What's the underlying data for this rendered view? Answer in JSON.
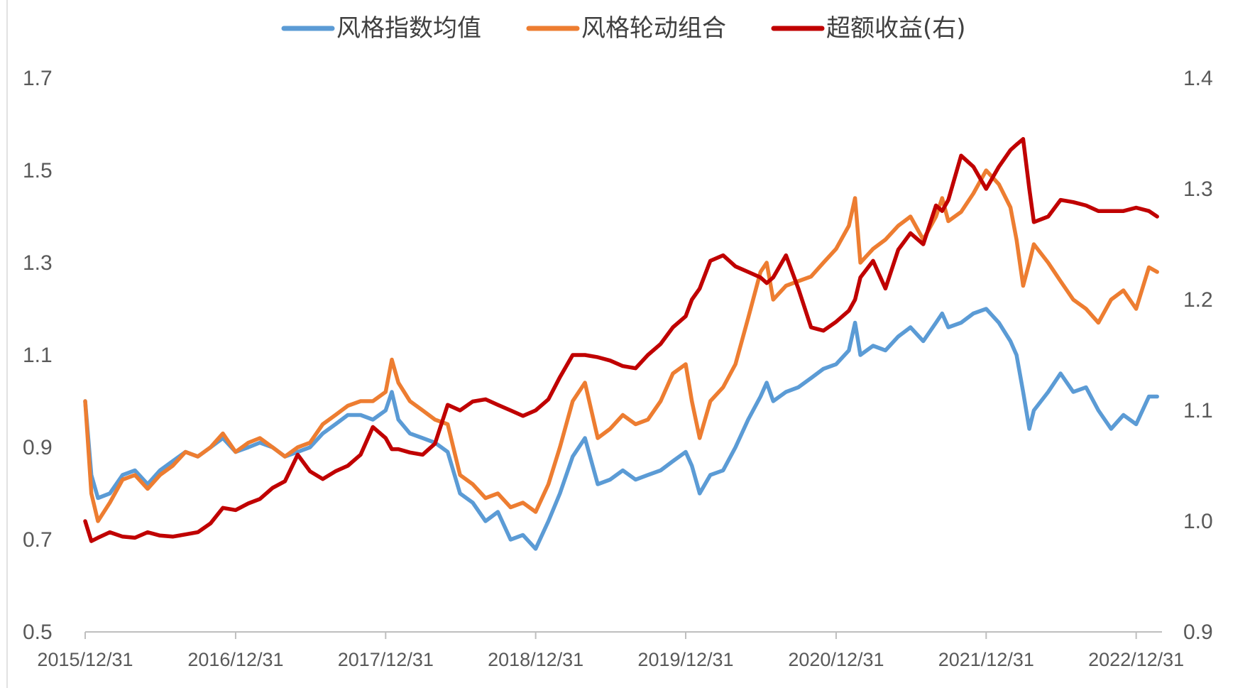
{
  "chart_data": {
    "type": "line",
    "title": "",
    "xlabel": "",
    "ylabel": "",
    "ylabel_right": "",
    "ylim": [
      0.5,
      1.7
    ],
    "ylim_right": [
      0.9,
      1.4
    ],
    "yticks": [
      "0.5",
      "0.7",
      "0.9",
      "1.1",
      "1.3",
      "1.5",
      "1.7"
    ],
    "yticks_right": [
      "0.9",
      "1.0",
      "1.1",
      "1.2",
      "1.3",
      "1.4"
    ],
    "x_tick_labels": [
      "2015/12/31",
      "2016/12/31",
      "2017/12/31",
      "2018/12/31",
      "2019/12/31",
      "2020/12/31",
      "2021/12/31",
      "2022/12/31"
    ],
    "legend_position": "top",
    "grid": false,
    "series": [
      {
        "name": "风格指数均值",
        "axis": "left",
        "color": "#5b9bd5",
        "x": [
          "2015/12/31",
          "2016/01/15",
          "2016/01/31",
          "2016/02/29",
          "2016/03/31",
          "2016/04/30",
          "2016/05/31",
          "2016/06/30",
          "2016/07/31",
          "2016/08/31",
          "2016/09/30",
          "2016/10/31",
          "2016/11/30",
          "2016/12/31",
          "2017/01/31",
          "2017/02/28",
          "2017/03/31",
          "2017/04/30",
          "2017/05/31",
          "2017/06/30",
          "2017/07/31",
          "2017/08/31",
          "2017/09/30",
          "2017/10/31",
          "2017/11/30",
          "2017/12/31",
          "2018/01/15",
          "2018/01/31",
          "2018/02/28",
          "2018/03/31",
          "2018/04/30",
          "2018/05/31",
          "2018/06/30",
          "2018/07/31",
          "2018/08/31",
          "2018/09/30",
          "2018/10/31",
          "2018/11/30",
          "2018/12/31",
          "2019/01/31",
          "2019/02/28",
          "2019/03/31",
          "2019/04/30",
          "2019/05/31",
          "2019/06/30",
          "2019/07/31",
          "2019/08/31",
          "2019/09/30",
          "2019/10/31",
          "2019/11/30",
          "2019/12/31",
          "2020/01/15",
          "2020/02/03",
          "2020/02/29",
          "2020/03/31",
          "2020/04/30",
          "2020/05/31",
          "2020/06/30",
          "2020/07/15",
          "2020/07/31",
          "2020/08/31",
          "2020/09/30",
          "2020/10/31",
          "2020/11/30",
          "2020/12/31",
          "2021/01/31",
          "2021/02/15",
          "2021/02/28",
          "2021/03/31",
          "2021/04/30",
          "2021/05/31",
          "2021/06/30",
          "2021/07/31",
          "2021/08/31",
          "2021/09/15",
          "2021/09/30",
          "2021/10/31",
          "2021/11/30",
          "2021/12/31",
          "2022/01/31",
          "2022/02/28",
          "2022/03/15",
          "2022/03/31",
          "2022/04/15",
          "2022/04/26",
          "2022/05/31",
          "2022/06/30",
          "2022/07/31",
          "2022/08/31",
          "2022/09/30",
          "2022/10/31",
          "2022/11/30",
          "2022/12/31",
          "2023/01/31",
          "2023/02/20"
        ],
        "values": [
          1.0,
          0.84,
          0.79,
          0.8,
          0.84,
          0.85,
          0.82,
          0.85,
          0.87,
          0.89,
          0.88,
          0.9,
          0.92,
          0.89,
          0.9,
          0.91,
          0.9,
          0.88,
          0.89,
          0.9,
          0.93,
          0.95,
          0.97,
          0.97,
          0.96,
          0.98,
          1.02,
          0.96,
          0.93,
          0.92,
          0.91,
          0.89,
          0.8,
          0.78,
          0.74,
          0.76,
          0.7,
          0.71,
          0.68,
          0.74,
          0.8,
          0.88,
          0.92,
          0.82,
          0.83,
          0.85,
          0.83,
          0.84,
          0.85,
          0.87,
          0.89,
          0.86,
          0.8,
          0.84,
          0.85,
          0.9,
          0.96,
          1.01,
          1.04,
          1.0,
          1.02,
          1.03,
          1.05,
          1.07,
          1.08,
          1.11,
          1.17,
          1.1,
          1.12,
          1.11,
          1.14,
          1.16,
          1.13,
          1.17,
          1.19,
          1.16,
          1.17,
          1.19,
          1.2,
          1.17,
          1.13,
          1.1,
          1.02,
          0.94,
          0.98,
          1.02,
          1.06,
          1.02,
          1.03,
          0.98,
          0.94,
          0.97,
          0.95,
          1.01,
          1.01
        ]
      },
      {
        "name": "风格轮动组合",
        "axis": "left",
        "color": "#ed7d31",
        "x": [
          "2015/12/31",
          "2016/01/15",
          "2016/01/31",
          "2016/02/29",
          "2016/03/31",
          "2016/04/30",
          "2016/05/31",
          "2016/06/30",
          "2016/07/31",
          "2016/08/31",
          "2016/09/30",
          "2016/10/31",
          "2016/11/30",
          "2016/12/31",
          "2017/01/31",
          "2017/02/28",
          "2017/03/31",
          "2017/04/30",
          "2017/05/31",
          "2017/06/30",
          "2017/07/31",
          "2017/08/31",
          "2017/09/30",
          "2017/10/31",
          "2017/11/30",
          "2017/12/31",
          "2018/01/15",
          "2018/01/31",
          "2018/02/28",
          "2018/03/31",
          "2018/04/30",
          "2018/05/31",
          "2018/06/30",
          "2018/07/31",
          "2018/08/31",
          "2018/09/30",
          "2018/10/31",
          "2018/11/30",
          "2018/12/31",
          "2019/01/31",
          "2019/02/28",
          "2019/03/31",
          "2019/04/30",
          "2019/05/31",
          "2019/06/30",
          "2019/07/31",
          "2019/08/31",
          "2019/09/30",
          "2019/10/31",
          "2019/11/30",
          "2019/12/31",
          "2020/01/15",
          "2020/02/03",
          "2020/02/29",
          "2020/03/31",
          "2020/04/30",
          "2020/05/31",
          "2020/06/30",
          "2020/07/15",
          "2020/07/31",
          "2020/08/31",
          "2020/09/30",
          "2020/10/31",
          "2020/11/30",
          "2020/12/31",
          "2021/01/31",
          "2021/02/15",
          "2021/02/28",
          "2021/03/31",
          "2021/04/30",
          "2021/05/31",
          "2021/06/30",
          "2021/07/31",
          "2021/08/31",
          "2021/09/15",
          "2021/09/30",
          "2021/10/31",
          "2021/11/30",
          "2021/12/31",
          "2022/01/31",
          "2022/02/28",
          "2022/03/15",
          "2022/03/31",
          "2022/04/15",
          "2022/04/26",
          "2022/05/31",
          "2022/06/30",
          "2022/07/31",
          "2022/08/31",
          "2022/09/30",
          "2022/10/31",
          "2022/11/30",
          "2022/12/31",
          "2023/01/31",
          "2023/02/20"
        ],
        "values": [
          1.0,
          0.8,
          0.74,
          0.78,
          0.83,
          0.84,
          0.81,
          0.84,
          0.86,
          0.89,
          0.88,
          0.9,
          0.93,
          0.89,
          0.91,
          0.92,
          0.9,
          0.88,
          0.9,
          0.91,
          0.95,
          0.97,
          0.99,
          1.0,
          1.0,
          1.02,
          1.09,
          1.04,
          1.0,
          0.98,
          0.96,
          0.95,
          0.84,
          0.82,
          0.79,
          0.8,
          0.77,
          0.78,
          0.76,
          0.82,
          0.9,
          1.0,
          1.04,
          0.92,
          0.94,
          0.97,
          0.95,
          0.96,
          1.0,
          1.06,
          1.08,
          1.0,
          0.92,
          1.0,
          1.03,
          1.08,
          1.18,
          1.28,
          1.3,
          1.22,
          1.25,
          1.26,
          1.27,
          1.3,
          1.33,
          1.38,
          1.44,
          1.3,
          1.33,
          1.35,
          1.38,
          1.4,
          1.35,
          1.4,
          1.44,
          1.39,
          1.41,
          1.45,
          1.5,
          1.47,
          1.42,
          1.35,
          1.25,
          1.3,
          1.34,
          1.3,
          1.26,
          1.22,
          1.2,
          1.17,
          1.22,
          1.24,
          1.2,
          1.29,
          1.28
        ]
      },
      {
        "name": "超额收益(右)",
        "axis": "right",
        "color": "#c00000",
        "x": [
          "2015/12/31",
          "2016/01/15",
          "2016/01/31",
          "2016/02/29",
          "2016/03/31",
          "2016/04/30",
          "2016/05/31",
          "2016/06/30",
          "2016/07/31",
          "2016/08/31",
          "2016/09/30",
          "2016/10/31",
          "2016/11/30",
          "2016/12/31",
          "2017/01/31",
          "2017/02/28",
          "2017/03/31",
          "2017/04/30",
          "2017/05/31",
          "2017/06/30",
          "2017/07/31",
          "2017/08/31",
          "2017/09/30",
          "2017/10/31",
          "2017/11/30",
          "2017/12/31",
          "2018/01/15",
          "2018/01/31",
          "2018/02/28",
          "2018/03/31",
          "2018/04/30",
          "2018/05/31",
          "2018/06/30",
          "2018/07/31",
          "2018/08/31",
          "2018/09/30",
          "2018/10/31",
          "2018/11/30",
          "2018/12/31",
          "2019/01/31",
          "2019/02/28",
          "2019/03/31",
          "2019/04/30",
          "2019/05/31",
          "2019/06/30",
          "2019/07/31",
          "2019/08/31",
          "2019/09/30",
          "2019/10/31",
          "2019/11/30",
          "2019/12/31",
          "2020/01/15",
          "2020/02/03",
          "2020/02/29",
          "2020/03/31",
          "2020/04/30",
          "2020/05/31",
          "2020/06/30",
          "2020/07/15",
          "2020/07/31",
          "2020/08/31",
          "2020/09/30",
          "2020/10/31",
          "2020/11/30",
          "2020/12/31",
          "2021/01/31",
          "2021/02/15",
          "2021/02/28",
          "2021/03/31",
          "2021/04/30",
          "2021/05/31",
          "2021/06/30",
          "2021/07/31",
          "2021/08/31",
          "2021/09/15",
          "2021/09/30",
          "2021/10/31",
          "2021/11/30",
          "2021/12/31",
          "2022/01/31",
          "2022/02/28",
          "2022/03/15",
          "2022/03/31",
          "2022/04/15",
          "2022/04/26",
          "2022/05/31",
          "2022/06/30",
          "2022/07/31",
          "2022/08/31",
          "2022/09/30",
          "2022/10/31",
          "2022/11/30",
          "2022/12/31",
          "2023/01/31",
          "2023/02/20"
        ],
        "values": [
          1.0,
          0.982,
          0.985,
          0.99,
          0.986,
          0.985,
          0.99,
          0.987,
          0.986,
          0.988,
          0.99,
          0.998,
          1.012,
          1.01,
          1.016,
          1.02,
          1.03,
          1.036,
          1.06,
          1.045,
          1.038,
          1.045,
          1.05,
          1.06,
          1.085,
          1.075,
          1.065,
          1.065,
          1.062,
          1.06,
          1.07,
          1.105,
          1.1,
          1.108,
          1.11,
          1.105,
          1.1,
          1.095,
          1.1,
          1.11,
          1.13,
          1.15,
          1.15,
          1.148,
          1.145,
          1.14,
          1.138,
          1.15,
          1.16,
          1.175,
          1.185,
          1.2,
          1.21,
          1.235,
          1.24,
          1.23,
          1.225,
          1.22,
          1.215,
          1.22,
          1.24,
          1.21,
          1.175,
          1.172,
          1.18,
          1.19,
          1.2,
          1.22,
          1.235,
          1.21,
          1.245,
          1.26,
          1.25,
          1.285,
          1.28,
          1.29,
          1.33,
          1.32,
          1.3,
          1.32,
          1.335,
          1.34,
          1.345,
          1.3,
          1.27,
          1.275,
          1.29,
          1.288,
          1.285,
          1.28,
          1.28,
          1.28,
          1.283,
          1.28,
          1.275
        ]
      }
    ]
  }
}
